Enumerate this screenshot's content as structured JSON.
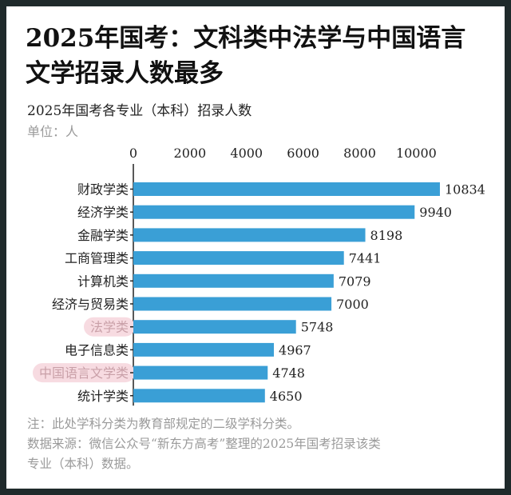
{
  "colors": {
    "bar": "#3a9fd6",
    "highlight": "#f7dbe1",
    "highlight_text": "#c9a0a8",
    "frame": "#1f2a2b"
  },
  "title_line1": "2025年国考：文科类中法学与中国语言",
  "title_line2": "文学招录人数最多",
  "chart_data": {
    "type": "bar",
    "orientation": "horizontal",
    "title": "2025年国考各专业（本科）招录人数",
    "unit_label": "单位：人",
    "categories": [
      "财政学类",
      "经济学类",
      "金融学类",
      "工商管理类",
      "计算机类",
      "经济与贸易类",
      "法学类",
      "电子信息类",
      "中国语言文学类",
      "统计学类"
    ],
    "values": [
      10834,
      9940,
      8198,
      7441,
      7079,
      7000,
      5748,
      4967,
      4748,
      4650
    ],
    "highlighted": [
      "法学类",
      "中国语言文学类"
    ],
    "xticks": [
      0,
      2000,
      4000,
      6000,
      8000,
      10000
    ],
    "xlim": [
      0,
      11000
    ],
    "axis_position": "top"
  },
  "notes": [
    "注：此处学科分类为教育部规定的二级学科分类。",
    "数据来源：微信公众号“新东方高考”整理的2025年国考招录该类",
    "专业（本科）数据。"
  ]
}
